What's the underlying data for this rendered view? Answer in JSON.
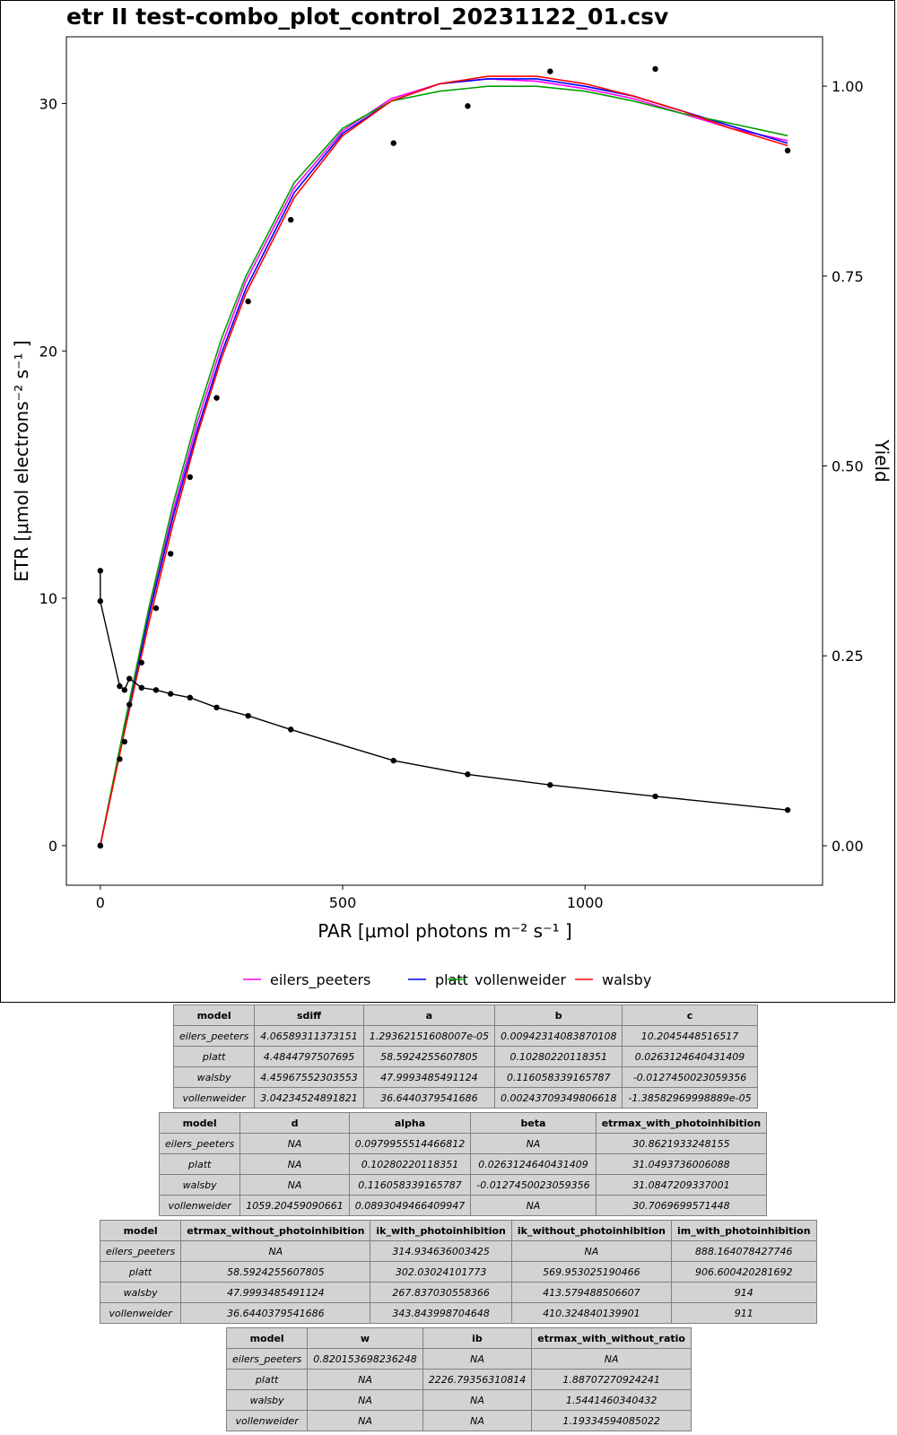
{
  "chart_data": {
    "type": "line",
    "title": "etr II test-combo_plot_control_20231122_01.csv",
    "xlabel": "PAR [μmol photons m⁻² s⁻¹ ]",
    "ylabel": "ETR [μmol electrons⁻² s⁻¹ ]",
    "y2label": "Yield",
    "xlim": [
      -70,
      1490
    ],
    "ylim": [
      -1.6,
      32.7
    ],
    "y2lim": [
      -0.052,
      1.065
    ],
    "xticks": [
      0,
      500,
      1000
    ],
    "yticks": [
      0,
      10,
      20,
      30
    ],
    "y2ticks": [
      0.0,
      0.25,
      0.5,
      0.75,
      1.0
    ],
    "y2ticklabels": [
      "0.00",
      "0.25",
      "0.50",
      "0.75",
      "1.00"
    ],
    "grid": false,
    "legend_position": "bottom",
    "etr_points": {
      "x": [
        0,
        0,
        40,
        50,
        60,
        85,
        115,
        145,
        185,
        240,
        305,
        393,
        605,
        758,
        928,
        1145,
        1418
      ],
      "y": [
        0,
        0,
        3.5,
        4.2,
        5.7,
        7.4,
        9.6,
        11.8,
        14.9,
        18.1,
        22.0,
        25.3,
        28.4,
        29.9,
        31.3,
        31.4,
        28.1
      ]
    },
    "yield_points": {
      "x": [
        0,
        0,
        40,
        50,
        60,
        85,
        115,
        145,
        185,
        240,
        305,
        393,
        605,
        758,
        928,
        1145,
        1418
      ],
      "y": [
        0.362,
        0.322,
        0.21,
        0.205,
        0.22,
        0.208,
        0.205,
        0.2,
        0.195,
        0.182,
        0.171,
        0.153,
        0.112,
        0.094,
        0.08,
        0.065,
        0.047
      ]
    },
    "series": [
      {
        "name": "eilers_peeters",
        "color": "#ff00ff",
        "x": [
          0,
          50,
          100,
          150,
          200,
          250,
          300,
          400,
          500,
          600,
          700,
          800,
          900,
          1000,
          1100,
          1200,
          1300,
          1418
        ],
        "y": [
          0,
          4.8,
          9.4,
          13.5,
          17.1,
          20.2,
          22.8,
          26.6,
          28.9,
          30.2,
          30.8,
          31.0,
          30.9,
          30.6,
          30.2,
          29.6,
          29.0,
          28.5
        ]
      },
      {
        "name": "platt",
        "color": "#0000ff",
        "x": [
          0,
          50,
          100,
          150,
          200,
          250,
          300,
          400,
          500,
          600,
          700,
          800,
          900,
          1000,
          1100,
          1200,
          1300,
          1418
        ],
        "y": [
          0,
          4.8,
          9.3,
          13.3,
          16.8,
          19.9,
          22.5,
          26.4,
          28.8,
          30.1,
          30.8,
          31.0,
          31.0,
          30.7,
          30.3,
          29.7,
          29.1,
          28.4
        ]
      },
      {
        "name": "vollenweider",
        "color": "#00a000",
        "x": [
          0,
          50,
          100,
          150,
          200,
          250,
          300,
          400,
          500,
          600,
          700,
          800,
          900,
          1000,
          1100,
          1200,
          1300,
          1418
        ],
        "y": [
          0,
          4.9,
          9.6,
          13.8,
          17.4,
          20.5,
          23.0,
          26.8,
          29.0,
          30.1,
          30.5,
          30.7,
          30.7,
          30.5,
          30.1,
          29.6,
          29.2,
          28.7
        ]
      },
      {
        "name": "walsby",
        "color": "#ff0000",
        "x": [
          0,
          50,
          100,
          150,
          200,
          250,
          300,
          400,
          500,
          600,
          700,
          800,
          900,
          1000,
          1100,
          1200,
          1300,
          1418
        ],
        "y": [
          0,
          4.6,
          9.0,
          13.0,
          16.6,
          19.7,
          22.3,
          26.2,
          28.7,
          30.1,
          30.8,
          31.1,
          31.1,
          30.8,
          30.3,
          29.7,
          29.0,
          28.3
        ]
      }
    ]
  },
  "tables": [
    {
      "headers": [
        "model",
        "sdiff",
        "a",
        "b",
        "c"
      ],
      "rows": [
        [
          "eilers_peeters",
          "4.06589311373151",
          "1.29362151608007e-05",
          "0.00942314083870108",
          "10.2045448516517"
        ],
        [
          "platt",
          "4.4844797507695",
          "58.5924255607805",
          "0.10280220118351",
          "0.0263124640431409"
        ],
        [
          "walsby",
          "4.45967552303553",
          "47.9993485491124",
          "0.116058339165787",
          "-0.0127450023059356"
        ],
        [
          "vollenweider",
          "3.04234524891821",
          "36.6440379541686",
          "0.00243709349806618",
          "-1.38582969998889e-05"
        ]
      ]
    },
    {
      "headers": [
        "model",
        "d",
        "alpha",
        "beta",
        "etrmax_with_photoinhibition"
      ],
      "rows": [
        [
          "eilers_peeters",
          "NA",
          "0.0979955514466812",
          "NA",
          "30.8621933248155"
        ],
        [
          "platt",
          "NA",
          "0.10280220118351",
          "0.0263124640431409",
          "31.0493736006088"
        ],
        [
          "walsby",
          "NA",
          "0.116058339165787",
          "-0.0127450023059356",
          "31.0847209337001"
        ],
        [
          "vollenweider",
          "1059.20459090661",
          "0.0893049466409947",
          "NA",
          "30.7069699571448"
        ]
      ]
    },
    {
      "headers": [
        "model",
        "etrmax_without_photoinhibition",
        "ik_with_photoinhibition",
        "ik_without_photoinhibition",
        "im_with_photoinhibition"
      ],
      "rows": [
        [
          "eilers_peeters",
          "NA",
          "314.934636003425",
          "NA",
          "888.164078427746"
        ],
        [
          "platt",
          "58.5924255607805",
          "302.03024101773",
          "569.953025190466",
          "906.600420281692"
        ],
        [
          "walsby",
          "47.9993485491124",
          "267.837030558366",
          "413.579488506607",
          "914"
        ],
        [
          "vollenweider",
          "36.6440379541686",
          "343.843998704648",
          "410.324840139901",
          "911"
        ]
      ]
    },
    {
      "headers": [
        "model",
        "w",
        "ib",
        "etrmax_with_without_ratio"
      ],
      "rows": [
        [
          "eilers_peeters",
          "0.820153698236248",
          "NA",
          "NA"
        ],
        [
          "platt",
          "NA",
          "2226.79356310814",
          "1.88707270924241"
        ],
        [
          "walsby",
          "NA",
          "NA",
          "1.5441460340432"
        ],
        [
          "vollenweider",
          "NA",
          "NA",
          "1.19334594085022"
        ]
      ]
    }
  ]
}
